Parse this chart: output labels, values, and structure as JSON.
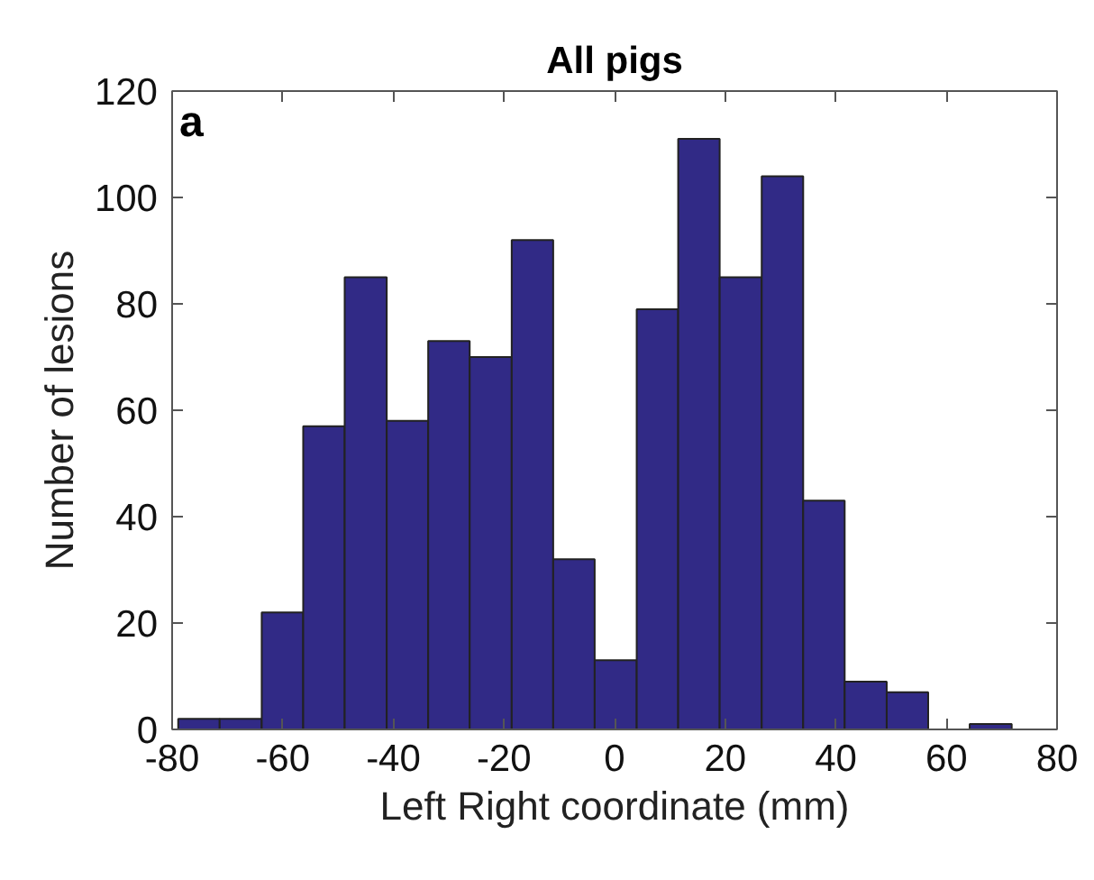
{
  "chart_data": {
    "type": "histogram",
    "title": "All pigs",
    "xlabel": "Left Right coordinate (mm)",
    "ylabel": "Number of lesions",
    "annotations": [
      "a"
    ],
    "bins": [
      -78.9,
      -71.4,
      -63.8,
      -56.3,
      -48.8,
      -41.2,
      -33.7,
      -26.2,
      -18.6,
      -11.1,
      -3.6,
      4.0,
      11.5,
      19.0,
      26.6,
      34.1,
      41.6,
      49.2,
      56.7,
      64.2,
      71.8
    ],
    "values": [
      2,
      2,
      22,
      57,
      85,
      58,
      73,
      70,
      92,
      32,
      13,
      79,
      111,
      85,
      104,
      43,
      9,
      7,
      0,
      1
    ],
    "color": "#312a86",
    "xlim": [
      -80,
      80
    ],
    "xticks": [
      -80,
      -60,
      -40,
      -20,
      0,
      20,
      40,
      60,
      80
    ],
    "ylim": [
      0,
      120
    ],
    "yticks": [
      0,
      20,
      40,
      60,
      80,
      100,
      120
    ],
    "grid": false
  }
}
